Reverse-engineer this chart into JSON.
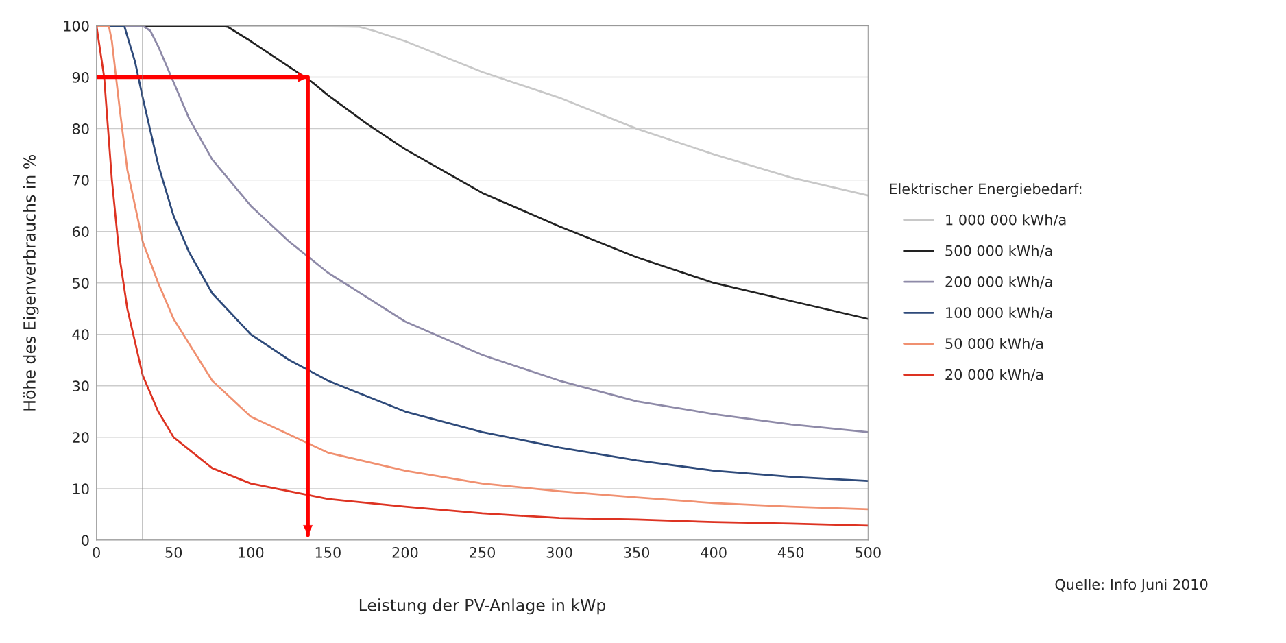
{
  "chart_data": {
    "type": "line",
    "xlabel": "Leistung der PV-Anlage in kWp",
    "ylabel": "Höhe des Eigenverbrauchs in %",
    "legend_title": "Elektrischer Energiebedarf:",
    "xlim": [
      0,
      500
    ],
    "xticks": [
      0,
      50,
      100,
      150,
      200,
      250,
      300,
      350,
      400,
      450,
      500
    ],
    "ylim": [
      0,
      100
    ],
    "yticks": [
      0,
      10,
      20,
      30,
      40,
      50,
      60,
      70,
      80,
      90,
      100
    ],
    "grid": "y",
    "legend": "right",
    "series": [
      {
        "name": "1 000 000 kWh/a",
        "color": "#c8c8c8",
        "x": [
          0,
          100,
          170,
          180,
          200,
          250,
          300,
          350,
          400,
          450,
          500
        ],
        "values": [
          100,
          100,
          99.8,
          99,
          97,
          91,
          86,
          80,
          75,
          70.5,
          67
        ]
      },
      {
        "name": "500 000 kWh/a",
        "color": "#222222",
        "x": [
          0,
          80,
          85,
          100,
          120,
          140,
          150,
          175,
          200,
          250,
          300,
          350,
          400,
          450,
          500
        ],
        "values": [
          100,
          100,
          99.8,
          97,
          93,
          89,
          86.5,
          81,
          76,
          67.5,
          61,
          55,
          50,
          46.5,
          43
        ]
      },
      {
        "name": "200 000 kWh/a",
        "color": "#8e8aa8",
        "x": [
          0,
          30,
          35,
          40,
          50,
          60,
          75,
          100,
          125,
          150,
          200,
          250,
          300,
          350,
          400,
          450,
          500
        ],
        "values": [
          100,
          100,
          99,
          96,
          89,
          82,
          74,
          65,
          58,
          52,
          42.5,
          36,
          31,
          27,
          24.5,
          22.5,
          21
        ]
      },
      {
        "name": "100 000 kWh/a",
        "color": "#2e4a7a",
        "x": [
          0,
          18,
          20,
          25,
          30,
          40,
          50,
          60,
          75,
          100,
          125,
          150,
          200,
          250,
          300,
          350,
          400,
          450,
          500
        ],
        "values": [
          100,
          100,
          98,
          93,
          86,
          73,
          63,
          56,
          48,
          40,
          35,
          31,
          25,
          21,
          18,
          15.5,
          13.5,
          12.3,
          11.5
        ]
      },
      {
        "name": "50 000 kWh/a",
        "color": "#f09070",
        "x": [
          0,
          8,
          10,
          15,
          20,
          30,
          40,
          50,
          75,
          100,
          150,
          200,
          250,
          300,
          350,
          400,
          450,
          500
        ],
        "values": [
          100,
          100,
          97,
          84,
          72,
          58,
          50,
          43,
          31,
          24,
          17,
          13.5,
          11,
          9.5,
          8.3,
          7.2,
          6.5,
          6
        ]
      },
      {
        "name": "20 000 kWh/a",
        "color": "#dd3322",
        "x": [
          0,
          5,
          10,
          15,
          20,
          30,
          40,
          50,
          75,
          100,
          150,
          200,
          250,
          300,
          350,
          400,
          450,
          500
        ],
        "values": [
          100,
          90,
          70,
          55,
          45,
          32,
          25,
          20,
          14,
          11,
          8,
          6.5,
          5.2,
          4.3,
          4,
          3.5,
          3.2,
          2.8
        ]
      },
      {
        "color": "#ff0000",
        "x": [
          0,
          137,
          137
        ],
        "values": [
          90,
          90,
          1
        ]
      }
    ],
    "ref_lines": [
      {
        "axis": "x",
        "value": 30,
        "color": "#808080"
      }
    ],
    "annotations": [
      "Quelle: Info Juni 2010"
    ]
  }
}
